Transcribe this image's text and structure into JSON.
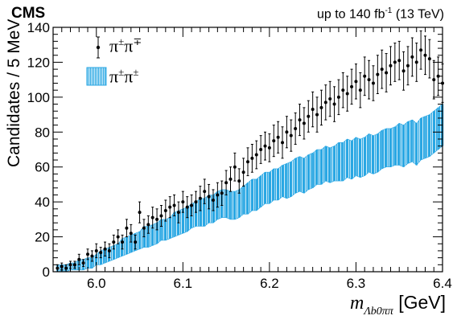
{
  "header": {
    "experiment": "CMS",
    "lumi_prefix": "up to 140 fb",
    "lumi_exp": "-1",
    "lumi_suffix": " (13 TeV)"
  },
  "colors": {
    "data": "#000000",
    "band": "#2aa7e3"
  },
  "chart_data": {
    "type": "line",
    "ylabel": "Candidates / 5 MeV",
    "xlabel_main": "m",
    "xlabel_sub": "Λb0ππ",
    "xlabel_unit": "[GeV]",
    "xlim": [
      5.95,
      6.4
    ],
    "ylim": [
      0,
      140
    ],
    "xticks": [
      "6.0",
      "6.1",
      "6.2",
      "6.3",
      "6.4"
    ],
    "yticks": [
      "0",
      "20",
      "40",
      "60",
      "80",
      "100",
      "120",
      "140"
    ],
    "legend": {
      "position": "top-left",
      "entries": [
        {
          "label_base": "π",
          "label_sup1": "±",
          "label_mid": "π",
          "label_sup2": "∓"
        },
        {
          "label_base": "π",
          "label_sup1": "±",
          "label_mid": "π",
          "label_sup2": "±"
        }
      ]
    },
    "series": [
      {
        "name": "π±π∓",
        "style": "points-with-errors",
        "x": [
          5.955,
          5.96,
          5.965,
          5.97,
          5.975,
          5.98,
          5.985,
          5.99,
          5.995,
          6.0,
          6.005,
          6.01,
          6.015,
          6.02,
          6.025,
          6.03,
          6.035,
          6.04,
          6.045,
          6.05,
          6.055,
          6.06,
          6.065,
          6.07,
          6.075,
          6.08,
          6.085,
          6.09,
          6.095,
          6.1,
          6.105,
          6.11,
          6.115,
          6.12,
          6.125,
          6.13,
          6.135,
          6.14,
          6.145,
          6.15,
          6.155,
          6.16,
          6.165,
          6.17,
          6.175,
          6.18,
          6.185,
          6.19,
          6.195,
          6.2,
          6.205,
          6.21,
          6.215,
          6.22,
          6.225,
          6.23,
          6.235,
          6.24,
          6.245,
          6.25,
          6.255,
          6.26,
          6.265,
          6.27,
          6.275,
          6.28,
          6.285,
          6.29,
          6.295,
          6.3,
          6.305,
          6.31,
          6.315,
          6.32,
          6.325,
          6.33,
          6.335,
          6.34,
          6.345,
          6.35,
          6.355,
          6.36,
          6.365,
          6.37,
          6.375,
          6.38,
          6.385,
          6.39,
          6.395,
          6.4
        ],
        "y": [
          2,
          3,
          2,
          4,
          4,
          7,
          5,
          10,
          9,
          12,
          11,
          13,
          12,
          17,
          20,
          17,
          25,
          22,
          17,
          34,
          25,
          27,
          31,
          30,
          32,
          35,
          37,
          38,
          34,
          40,
          37,
          38,
          40,
          42,
          46,
          43,
          41,
          44,
          45,
          51,
          53,
          60,
          52,
          57,
          63,
          65,
          67,
          70,
          72,
          71,
          75,
          77,
          74,
          80,
          78,
          82,
          87,
          85,
          89,
          93,
          90,
          94,
          97,
          99,
          96,
          100,
          104,
          102,
          106,
          109,
          104,
          112,
          110,
          108,
          113,
          116,
          114,
          118,
          120,
          121,
          115,
          118,
          123,
          120,
          127,
          124,
          122,
          110,
          112,
          108
        ],
        "err": [
          2,
          2,
          2,
          2,
          2,
          3,
          2,
          3,
          3,
          4,
          3,
          4,
          4,
          4,
          4,
          4,
          5,
          5,
          4,
          6,
          5,
          5,
          6,
          6,
          6,
          6,
          6,
          6,
          6,
          6,
          6,
          6,
          6,
          7,
          7,
          7,
          6,
          7,
          7,
          7,
          7,
          8,
          7,
          8,
          8,
          8,
          8,
          8,
          8,
          8,
          9,
          9,
          9,
          9,
          9,
          9,
          9,
          9,
          9,
          10,
          10,
          10,
          10,
          10,
          10,
          10,
          10,
          10,
          10,
          10,
          10,
          11,
          11,
          10,
          11,
          11,
          11,
          11,
          11,
          11,
          11,
          11,
          11,
          11,
          11,
          11,
          11,
          11,
          11,
          11
        ]
      },
      {
        "name": "π±π±",
        "style": "band",
        "x": [
          5.955,
          5.96,
          5.965,
          5.97,
          5.975,
          5.98,
          5.985,
          5.99,
          5.995,
          6.0,
          6.005,
          6.01,
          6.015,
          6.02,
          6.025,
          6.03,
          6.035,
          6.04,
          6.045,
          6.05,
          6.055,
          6.06,
          6.065,
          6.07,
          6.075,
          6.08,
          6.085,
          6.09,
          6.095,
          6.1,
          6.105,
          6.11,
          6.115,
          6.12,
          6.125,
          6.13,
          6.135,
          6.14,
          6.145,
          6.15,
          6.155,
          6.16,
          6.165,
          6.17,
          6.175,
          6.18,
          6.185,
          6.19,
          6.195,
          6.2,
          6.205,
          6.21,
          6.215,
          6.22,
          6.225,
          6.23,
          6.235,
          6.24,
          6.245,
          6.25,
          6.255,
          6.26,
          6.265,
          6.27,
          6.275,
          6.28,
          6.285,
          6.29,
          6.295,
          6.3,
          6.305,
          6.31,
          6.315,
          6.32,
          6.325,
          6.33,
          6.335,
          6.34,
          6.345,
          6.35,
          6.355,
          6.36,
          6.365,
          6.37,
          6.375,
          6.38,
          6.385,
          6.39,
          6.395,
          6.4
        ],
        "center": [
          2,
          2,
          2,
          3,
          3,
          4,
          4,
          5,
          5,
          7,
          8,
          9,
          10,
          11,
          12,
          14,
          15,
          16,
          17,
          18,
          20,
          20,
          21,
          22,
          24,
          24,
          25,
          27,
          28,
          29,
          30,
          32,
          33,
          34,
          34,
          36,
          36,
          38,
          39,
          39,
          38,
          38,
          39,
          41,
          42,
          44,
          44,
          46,
          48,
          48,
          50,
          50,
          52,
          52,
          53,
          55,
          56,
          55,
          57,
          58,
          60,
          60,
          62,
          61,
          62,
          63,
          63,
          65,
          64,
          66,
          65,
          66,
          68,
          67,
          68,
          70,
          71,
          71,
          72,
          73,
          72,
          74,
          75,
          73,
          76,
          77,
          78,
          80,
          82,
          84
        ],
        "half_width": [
          2,
          2,
          2,
          2,
          2,
          3,
          3,
          3,
          3,
          3,
          4,
          4,
          4,
          4,
          4,
          5,
          5,
          5,
          5,
          5,
          6,
          6,
          6,
          6,
          6,
          6,
          6,
          7,
          7,
          7,
          7,
          7,
          7,
          8,
          8,
          8,
          8,
          8,
          8,
          8,
          8,
          8,
          8,
          8,
          9,
          9,
          9,
          9,
          9,
          9,
          9,
          9,
          9,
          10,
          10,
          10,
          10,
          10,
          10,
          10,
          10,
          10,
          10,
          10,
          10,
          11,
          11,
          11,
          11,
          11,
          11,
          11,
          11,
          11,
          11,
          11,
          11,
          11,
          11,
          12,
          12,
          12,
          12,
          12,
          12,
          12,
          12,
          12,
          12,
          12
        ]
      }
    ]
  }
}
